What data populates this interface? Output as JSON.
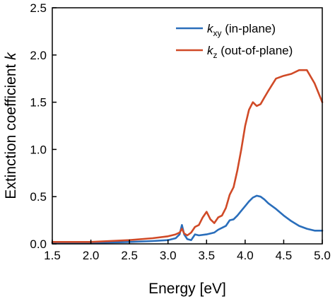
{
  "chart_data": {
    "type": "line",
    "xlabel": "Energy [eV]",
    "ylabel": "Extinction coefficient k",
    "xlim": [
      1.5,
      5.0
    ],
    "ylim": [
      0.0,
      2.5
    ],
    "xticks": [
      "1.5",
      "2.0",
      "2.5",
      "3.0",
      "3.5",
      "4.0",
      "4.5",
      "5.0"
    ],
    "yticks": [
      "0.0",
      "0.5",
      "1.0",
      "1.5",
      "2.0",
      "2.5"
    ],
    "grid": false,
    "legend_position": "top-right",
    "series": [
      {
        "name": "k_xy (in-plane)",
        "legend_main": "k",
        "legend_sub": "xy",
        "legend_rest": " (in-plane)",
        "color": "#2a6ebb",
        "x": [
          1.5,
          2.0,
          2.5,
          2.8,
          3.0,
          3.1,
          3.15,
          3.18,
          3.21,
          3.25,
          3.3,
          3.35,
          3.4,
          3.5,
          3.6,
          3.65,
          3.7,
          3.75,
          3.8,
          3.85,
          3.9,
          3.95,
          4.0,
          4.05,
          4.1,
          4.15,
          4.2,
          4.25,
          4.3,
          4.4,
          4.5,
          4.6,
          4.7,
          4.8,
          4.9,
          5.0
        ],
        "y": [
          0.01,
          0.01,
          0.02,
          0.03,
          0.04,
          0.06,
          0.1,
          0.2,
          0.1,
          0.05,
          0.04,
          0.1,
          0.09,
          0.1,
          0.12,
          0.15,
          0.17,
          0.19,
          0.25,
          0.26,
          0.3,
          0.35,
          0.4,
          0.45,
          0.49,
          0.51,
          0.5,
          0.47,
          0.43,
          0.37,
          0.3,
          0.24,
          0.19,
          0.16,
          0.14,
          0.14
        ]
      },
      {
        "name": "k_z (out-of-plane)",
        "legend_main": "k",
        "legend_sub": "z",
        "legend_rest": " (out-of-plane)",
        "color": "#d04a27",
        "x": [
          1.5,
          2.0,
          2.5,
          2.8,
          3.0,
          3.1,
          3.15,
          3.18,
          3.21,
          3.25,
          3.3,
          3.35,
          3.4,
          3.45,
          3.5,
          3.55,
          3.6,
          3.65,
          3.7,
          3.75,
          3.8,
          3.85,
          3.9,
          3.95,
          4.0,
          4.05,
          4.1,
          4.15,
          4.2,
          4.25,
          4.3,
          4.4,
          4.5,
          4.6,
          4.7,
          4.8,
          4.9,
          5.0
        ],
        "y": [
          0.02,
          0.02,
          0.04,
          0.06,
          0.08,
          0.1,
          0.12,
          0.16,
          0.11,
          0.09,
          0.12,
          0.18,
          0.2,
          0.28,
          0.34,
          0.26,
          0.22,
          0.28,
          0.3,
          0.38,
          0.52,
          0.6,
          0.78,
          1.0,
          1.25,
          1.42,
          1.5,
          1.46,
          1.48,
          1.55,
          1.62,
          1.75,
          1.78,
          1.8,
          1.84,
          1.84,
          1.7,
          1.5
        ]
      }
    ]
  }
}
